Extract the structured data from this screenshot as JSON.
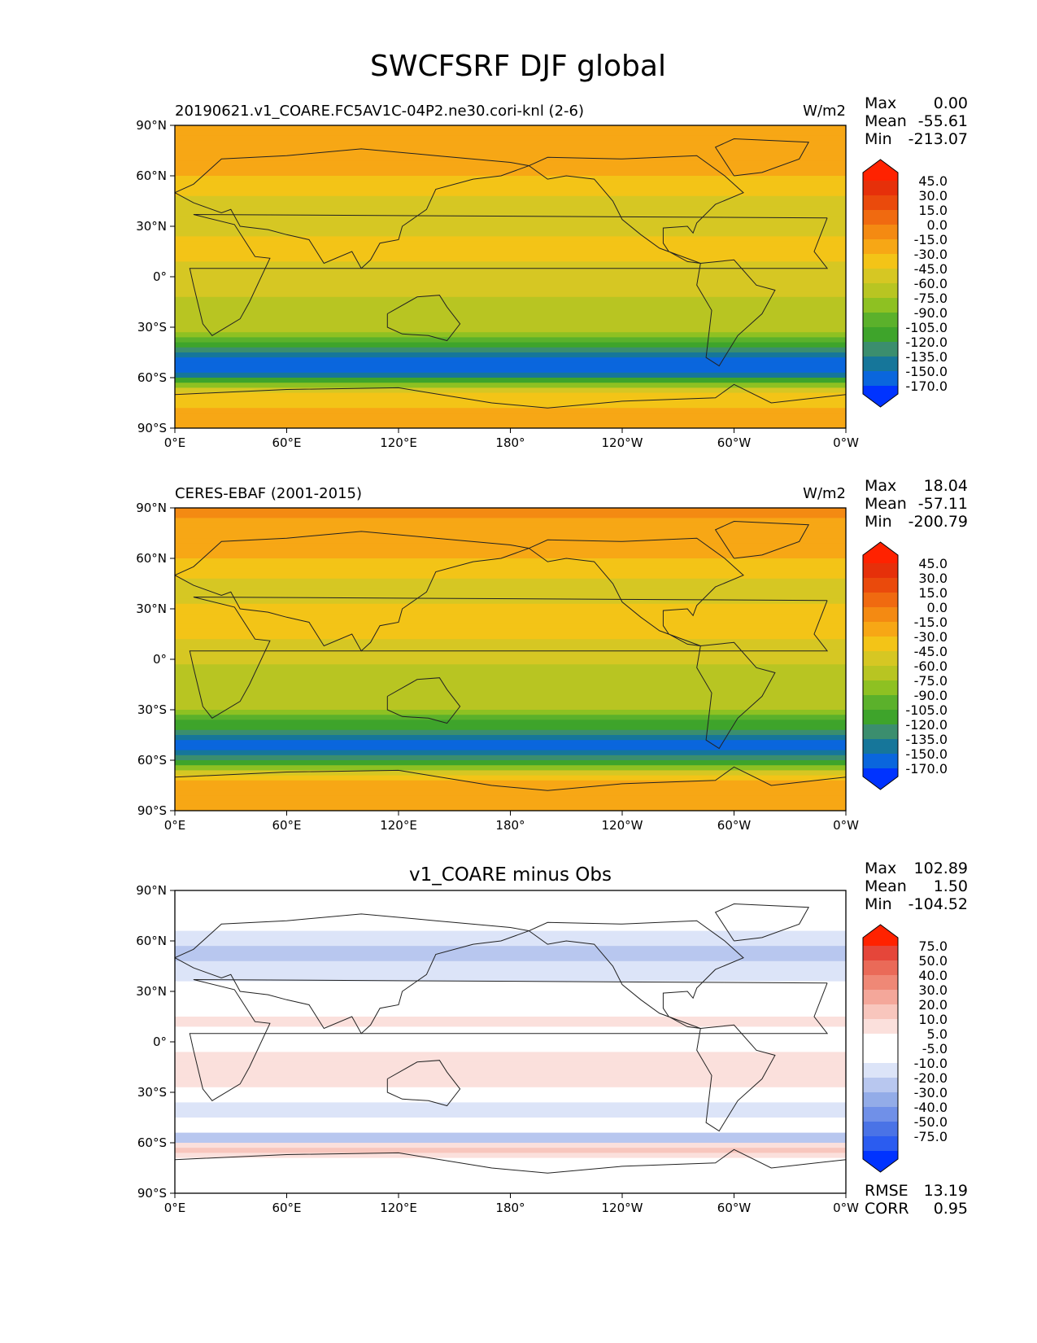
{
  "figure": {
    "title": "SWCFSRF DJF global"
  },
  "palettes": {
    "field": [
      "#0033ff",
      "#0a66dd",
      "#16769a",
      "#3b8e6e",
      "#3ea42b",
      "#5bb12b",
      "#8ec122",
      "#b8c522",
      "#d6c723",
      "#f3c417",
      "#f7a715",
      "#f48a12",
      "#f06a10",
      "#ea4a0c",
      "#e6300a",
      "#ff2200"
    ],
    "diff": [
      "#0033ff",
      "#2b5cf0",
      "#4a73e6",
      "#7090e8",
      "#93ace8",
      "#b8c7ef",
      "#dce4f8",
      "#ffffff",
      "#ffffff",
      "#fbe0dc",
      "#f8c6bd",
      "#f4a79a",
      "#ef8876",
      "#ea6a58",
      "#e5463a",
      "#ff2200"
    ]
  },
  "chart_data": [
    {
      "type": "heatmap",
      "name": "test",
      "title_left": "20190621.v1_COARE.FC5AV1C-04P2.ne30.cori-knl (2-6)",
      "title_center": "",
      "units": "W/m2",
      "stats": {
        "max": "0.00",
        "mean": "-55.61",
        "min": "-213.07"
      },
      "colorbar_levels": [
        "45.0",
        "30.0",
        "15.0",
        "0.0",
        "-15.0",
        "-30.0",
        "-45.0",
        "-60.0",
        "-75.0",
        "-90.0",
        "-105.0",
        "-120.0",
        "-135.0",
        "-150.0",
        "-170.0"
      ],
      "x_ticks": [
        "0°E",
        "60°E",
        "120°E",
        "180°",
        "120°W",
        "60°W",
        "0°W"
      ],
      "y_ticks": [
        "90°N",
        "60°N",
        "30°N",
        "0°",
        "30°S",
        "60°S",
        "90°S"
      ],
      "zonal_profile": [
        {
          "lat": 90,
          "value": -22
        },
        {
          "lat": 75,
          "value": -22
        },
        {
          "lat": 60,
          "value": -30
        },
        {
          "lat": 45,
          "value": -48
        },
        {
          "lat": 30,
          "value": -48
        },
        {
          "lat": 15,
          "value": -38
        },
        {
          "lat": 5,
          "value": -50
        },
        {
          "lat": 0,
          "value": -52
        },
        {
          "lat": -15,
          "value": -62
        },
        {
          "lat": -30,
          "value": -68
        },
        {
          "lat": -40,
          "value": -112
        },
        {
          "lat": -50,
          "value": -155
        },
        {
          "lat": -55,
          "value": -160
        },
        {
          "lat": -62,
          "value": -112
        },
        {
          "lat": -70,
          "value": -35
        },
        {
          "lat": -90,
          "value": -20
        }
      ]
    },
    {
      "type": "heatmap",
      "name": "reference",
      "title_left": "CERES-EBAF (2001-2015)",
      "title_center": "",
      "units": "W/m2",
      "stats": {
        "max": "18.04",
        "mean": "-57.11",
        "min": "-200.79"
      },
      "colorbar_levels": [
        "45.0",
        "30.0",
        "15.0",
        "0.0",
        "-15.0",
        "-30.0",
        "-45.0",
        "-60.0",
        "-75.0",
        "-90.0",
        "-105.0",
        "-120.0",
        "-135.0",
        "-150.0",
        "-170.0"
      ],
      "x_ticks": [
        "0°E",
        "60°E",
        "120°E",
        "180°",
        "120°W",
        "60°W",
        "0°W"
      ],
      "y_ticks": [
        "90°N",
        "60°N",
        "30°N",
        "0°",
        "30°S",
        "60°S",
        "90°S"
      ],
      "zonal_profile": [
        {
          "lat": 90,
          "value": -12
        },
        {
          "lat": 75,
          "value": -18
        },
        {
          "lat": 60,
          "value": -28
        },
        {
          "lat": 45,
          "value": -50
        },
        {
          "lat": 30,
          "value": -44
        },
        {
          "lat": 15,
          "value": -40
        },
        {
          "lat": 5,
          "value": -55
        },
        {
          "lat": 0,
          "value": -58
        },
        {
          "lat": -15,
          "value": -70
        },
        {
          "lat": -30,
          "value": -75
        },
        {
          "lat": -40,
          "value": -118
        },
        {
          "lat": -50,
          "value": -152
        },
        {
          "lat": -55,
          "value": -150
        },
        {
          "lat": -62,
          "value": -108
        },
        {
          "lat": -70,
          "value": -32
        },
        {
          "lat": -90,
          "value": -20
        }
      ]
    },
    {
      "type": "heatmap",
      "name": "difference",
      "title_left": "",
      "title_center": "v1_COARE minus Obs",
      "units": "",
      "stats": {
        "max": "102.89",
        "mean": "1.50",
        "min": "-104.52"
      },
      "extra_stats": {
        "rmse": "13.19",
        "corr": "0.95"
      },
      "colorbar_levels": [
        "75.0",
        "50.0",
        "40.0",
        "30.0",
        "20.0",
        "10.0",
        "5.0",
        "-5.0",
        "-10.0",
        "-20.0",
        "-30.0",
        "-40.0",
        "-50.0",
        "-75.0"
      ],
      "x_ticks": [
        "0°E",
        "60°E",
        "120°E",
        "180°",
        "120°W",
        "60°W",
        "0°W"
      ],
      "y_ticks": [
        "90°N",
        "60°N",
        "30°N",
        "0°",
        "30°S",
        "60°S",
        "90°S"
      ],
      "zonal_profile": [
        {
          "lat": 90,
          "value": 0
        },
        {
          "lat": 75,
          "value": 0
        },
        {
          "lat": 55,
          "value": -12
        },
        {
          "lat": 40,
          "value": -8
        },
        {
          "lat": 25,
          "value": 6
        },
        {
          "lat": 10,
          "value": 12
        },
        {
          "lat": 0,
          "value": 4
        },
        {
          "lat": -12,
          "value": 14
        },
        {
          "lat": -28,
          "value": 10
        },
        {
          "lat": -40,
          "value": -10
        },
        {
          "lat": -52,
          "value": 6
        },
        {
          "lat": -58,
          "value": -22
        },
        {
          "lat": -63,
          "value": 28
        },
        {
          "lat": -70,
          "value": 8
        },
        {
          "lat": -90,
          "value": 0
        }
      ]
    }
  ],
  "stat_labels": {
    "max": "Max",
    "mean": "Mean",
    "min": "Min",
    "rmse": "RMSE",
    "corr": "CORR"
  }
}
